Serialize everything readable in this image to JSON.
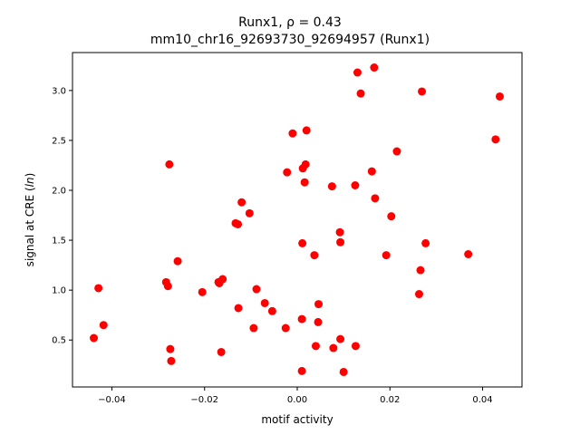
{
  "chart_data": {
    "type": "scatter",
    "title_line1": "Runx1, ρ = 0.43",
    "title_line2": "mm10_chr16_92693730_92694957 (Runx1)",
    "xlabel": "motif activity",
    "ylabel_main": "signal at CRE (",
    "ylabel_italic": "ln",
    "ylabel_end": ")",
    "xlim": [
      -0.0485,
      0.0485
    ],
    "ylim": [
      0.03,
      3.38
    ],
    "xticks": [
      -0.04,
      -0.02,
      0.0,
      0.02,
      0.04
    ],
    "xtick_labels": [
      "−0.04",
      "−0.02",
      "0.00",
      "0.02",
      "0.04"
    ],
    "yticks": [
      0.5,
      1.0,
      1.5,
      2.0,
      2.5,
      3.0
    ],
    "ytick_labels": [
      "0.5",
      "1.0",
      "1.5",
      "2.0",
      "2.5",
      "3.0"
    ],
    "grid": false,
    "marker_color": "#ff0000",
    "points": [
      {
        "x": -0.0439,
        "y": 0.52
      },
      {
        "x": -0.0429,
        "y": 1.02
      },
      {
        "x": -0.0418,
        "y": 0.65
      },
      {
        "x": -0.0283,
        "y": 1.08
      },
      {
        "x": -0.0279,
        "y": 1.04
      },
      {
        "x": -0.0276,
        "y": 2.26
      },
      {
        "x": -0.0274,
        "y": 0.41
      },
      {
        "x": -0.0272,
        "y": 0.29
      },
      {
        "x": -0.0258,
        "y": 1.29
      },
      {
        "x": -0.0205,
        "y": 0.98
      },
      {
        "x": -0.017,
        "y": 1.08
      },
      {
        "x": -0.0168,
        "y": 1.07
      },
      {
        "x": -0.0164,
        "y": 0.38
      },
      {
        "x": -0.0161,
        "y": 1.11
      },
      {
        "x": -0.0133,
        "y": 1.67
      },
      {
        "x": -0.0128,
        "y": 1.66
      },
      {
        "x": -0.0127,
        "y": 0.82
      },
      {
        "x": -0.012,
        "y": 1.88
      },
      {
        "x": -0.0103,
        "y": 1.77
      },
      {
        "x": -0.0094,
        "y": 0.62
      },
      {
        "x": -0.0088,
        "y": 1.01
      },
      {
        "x": -0.007,
        "y": 0.87
      },
      {
        "x": -0.0054,
        "y": 0.79
      },
      {
        "x": -0.0025,
        "y": 0.62
      },
      {
        "x": -0.0022,
        "y": 2.18
      },
      {
        "x": -0.001,
        "y": 2.57
      },
      {
        "x": 0.001,
        "y": 0.19
      },
      {
        "x": 0.001,
        "y": 0.71
      },
      {
        "x": 0.0011,
        "y": 1.47
      },
      {
        "x": 0.0012,
        "y": 2.22
      },
      {
        "x": 0.0016,
        "y": 2.08
      },
      {
        "x": 0.0018,
        "y": 2.26
      },
      {
        "x": 0.002,
        "y": 2.6
      },
      {
        "x": 0.0037,
        "y": 1.35
      },
      {
        "x": 0.004,
        "y": 0.44
      },
      {
        "x": 0.0045,
        "y": 0.68
      },
      {
        "x": 0.0046,
        "y": 0.86
      },
      {
        "x": 0.0075,
        "y": 2.04
      },
      {
        "x": 0.0078,
        "y": 0.42
      },
      {
        "x": 0.0092,
        "y": 1.58
      },
      {
        "x": 0.0093,
        "y": 1.48
      },
      {
        "x": 0.0093,
        "y": 0.51
      },
      {
        "x": 0.01,
        "y": 0.18
      },
      {
        "x": 0.0125,
        "y": 2.05
      },
      {
        "x": 0.0126,
        "y": 0.44
      },
      {
        "x": 0.013,
        "y": 3.18
      },
      {
        "x": 0.0137,
        "y": 2.97
      },
      {
        "x": 0.0161,
        "y": 2.19
      },
      {
        "x": 0.0166,
        "y": 3.23
      },
      {
        "x": 0.0168,
        "y": 1.92
      },
      {
        "x": 0.0192,
        "y": 1.35
      },
      {
        "x": 0.0203,
        "y": 1.74
      },
      {
        "x": 0.0215,
        "y": 2.39
      },
      {
        "x": 0.0263,
        "y": 0.96
      },
      {
        "x": 0.0266,
        "y": 1.2
      },
      {
        "x": 0.0269,
        "y": 2.99
      },
      {
        "x": 0.0277,
        "y": 1.47
      },
      {
        "x": 0.0369,
        "y": 1.36
      },
      {
        "x": 0.0428,
        "y": 2.51
      },
      {
        "x": 0.0437,
        "y": 2.94
      }
    ]
  }
}
